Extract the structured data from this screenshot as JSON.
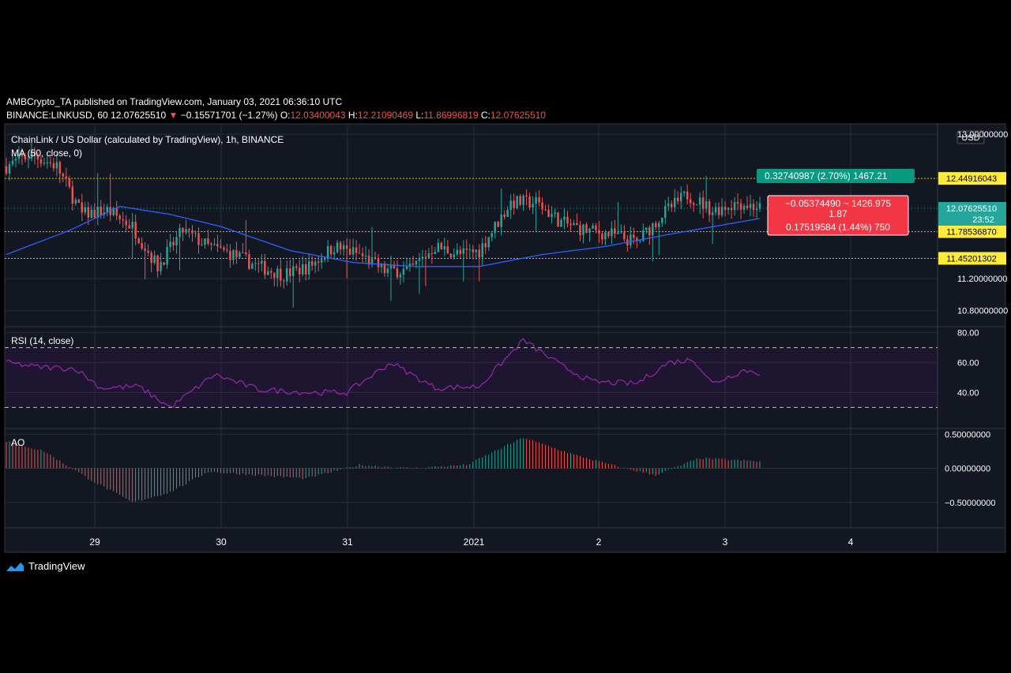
{
  "header": {
    "published": "AMBCrypto_TA published on TradingView.com, January 03, 2021 06:36:10 UTC",
    "symbol": "BINANCE:LINKUSD, 60",
    "last": "12.07625510",
    "change_arrow": "▼",
    "change": "−0.15571701 (−1.27%)",
    "o_label": "O:",
    "o_value": "12.03400043",
    "h_label": "H:",
    "h_value": "12.21090469",
    "l_label": "L:",
    "l_value": "11.86996819",
    "c_label": "C:",
    "c_value": "12.07625510"
  },
  "panes": {
    "price_title": "ChainLink / US Dollar (calculated by TradingView), 1h, BINANCE",
    "ma_label": "MA (50, close, 0)",
    "rsi_label": "RSI (14, close)",
    "ao_label": "AO",
    "currency": "USD"
  },
  "price_axis": {
    "ticks": [
      "13.00000000",
      "11.20000000",
      "10.80000000"
    ],
    "tick_values": [
      13.0,
      11.2,
      10.8
    ],
    "levels": [
      {
        "label": "12.44916043",
        "value": 12.44916043
      },
      {
        "label": "11.78536870",
        "value": 11.7853687
      },
      {
        "label": "11.45201302",
        "value": 11.45201302
      }
    ],
    "last_label": "12.07625510",
    "last_value": 12.0762551,
    "countdown": "23:52"
  },
  "rsi_axis": {
    "ticks": [
      "80.00",
      "60.00",
      "40.00"
    ],
    "tick_values": [
      80,
      60,
      40
    ],
    "band": [
      30,
      70
    ]
  },
  "ao_axis": {
    "ticks": [
      "0.50000000",
      "0.00000000",
      "−0.50000000"
    ],
    "tick_values": [
      0.5,
      0.0,
      -0.5
    ]
  },
  "time_axis": {
    "labels": [
      "29",
      "30",
      "31",
      "2021",
      "2",
      "3",
      "4"
    ]
  },
  "measure_tool": {
    "top_text": "0.32740987 (2.70%) 1467.21",
    "mid_line1": "−0.05374490 ~ 1426.975",
    "mid_line2": "1.87",
    "bottom_text": "0.17519584 (1.44%) 750"
  },
  "footer": {
    "brand": "TradingView"
  },
  "colors": {
    "up": "#26a69a",
    "down": "#ef5350",
    "ma": "#2962ff",
    "rsi": "#9c27b0",
    "level": "#e0c200",
    "grid": "#2a2e39",
    "band": "#1e1530"
  },
  "chart_data": {
    "type": "candlestick",
    "title": "ChainLink / US Dollar (calculated by TradingView), 1h, BINANCE",
    "x_labels": [
      "29",
      "30",
      "31",
      "2021",
      "2",
      "3",
      "4"
    ],
    "price_anchors": [
      {
        "t": 0,
        "p": 12.6
      },
      {
        "t": 8,
        "p": 12.75
      },
      {
        "t": 16,
        "p": 12.6
      },
      {
        "t": 24,
        "p": 12.0
      },
      {
        "t": 32,
        "p": 12.05
      },
      {
        "t": 40,
        "p": 11.85
      },
      {
        "t": 48,
        "p": 11.35
      },
      {
        "t": 56,
        "p": 11.8
      },
      {
        "t": 64,
        "p": 11.6
      },
      {
        "t": 72,
        "p": 11.5
      },
      {
        "t": 80,
        "p": 11.35
      },
      {
        "t": 88,
        "p": 11.25
      },
      {
        "t": 96,
        "p": 11.35
      },
      {
        "t": 104,
        "p": 11.6
      },
      {
        "t": 112,
        "p": 11.5
      },
      {
        "t": 120,
        "p": 11.3
      },
      {
        "t": 128,
        "p": 11.3
      },
      {
        "t": 136,
        "p": 11.6
      },
      {
        "t": 144,
        "p": 11.5
      },
      {
        "t": 150,
        "p": 11.55
      },
      {
        "t": 160,
        "p": 12.15
      },
      {
        "t": 168,
        "p": 12.15
      },
      {
        "t": 176,
        "p": 11.9
      },
      {
        "t": 184,
        "p": 11.8
      },
      {
        "t": 192,
        "p": 11.75
      },
      {
        "t": 200,
        "p": 11.65
      },
      {
        "t": 208,
        "p": 12.0
      },
      {
        "t": 216,
        "p": 12.25
      },
      {
        "t": 224,
        "p": 12.05
      },
      {
        "t": 232,
        "p": 12.15
      },
      {
        "t": 239,
        "p": 12.08
      }
    ],
    "ma_anchors": [
      {
        "t": 0,
        "p": 11.5
      },
      {
        "t": 20,
        "p": 11.8
      },
      {
        "t": 36,
        "p": 12.1
      },
      {
        "t": 52,
        "p": 12.0
      },
      {
        "t": 68,
        "p": 11.85
      },
      {
        "t": 90,
        "p": 11.55
      },
      {
        "t": 110,
        "p": 11.4
      },
      {
        "t": 130,
        "p": 11.35
      },
      {
        "t": 150,
        "p": 11.35
      },
      {
        "t": 170,
        "p": 11.5
      },
      {
        "t": 190,
        "p": 11.6
      },
      {
        "t": 210,
        "p": 11.75
      },
      {
        "t": 239,
        "p": 11.95
      }
    ],
    "rsi_anchors": [
      {
        "t": 0,
        "p": 60
      },
      {
        "t": 10,
        "p": 57
      },
      {
        "t": 22,
        "p": 56
      },
      {
        "t": 30,
        "p": 43
      },
      {
        "t": 42,
        "p": 44
      },
      {
        "t": 52,
        "p": 30
      },
      {
        "t": 66,
        "p": 52
      },
      {
        "t": 80,
        "p": 42
      },
      {
        "t": 96,
        "p": 40
      },
      {
        "t": 108,
        "p": 40
      },
      {
        "t": 122,
        "p": 60
      },
      {
        "t": 136,
        "p": 43
      },
      {
        "t": 150,
        "p": 44
      },
      {
        "t": 164,
        "p": 75
      },
      {
        "t": 176,
        "p": 58
      },
      {
        "t": 186,
        "p": 47
      },
      {
        "t": 200,
        "p": 46
      },
      {
        "t": 210,
        "p": 60
      },
      {
        "t": 218,
        "p": 62
      },
      {
        "t": 224,
        "p": 46
      },
      {
        "t": 234,
        "p": 55
      },
      {
        "t": 239,
        "p": 53
      }
    ],
    "ao_anchors": [
      {
        "t": 0,
        "p": 0.4
      },
      {
        "t": 12,
        "p": 0.25
      },
      {
        "t": 26,
        "p": -0.15
      },
      {
        "t": 40,
        "p": -0.5
      },
      {
        "t": 52,
        "p": -0.35
      },
      {
        "t": 64,
        "p": -0.05
      },
      {
        "t": 80,
        "p": -0.1
      },
      {
        "t": 95,
        "p": -0.15
      },
      {
        "t": 112,
        "p": 0.05
      },
      {
        "t": 128,
        "p": 0.0
      },
      {
        "t": 146,
        "p": 0.05
      },
      {
        "t": 164,
        "p": 0.45
      },
      {
        "t": 180,
        "p": 0.2
      },
      {
        "t": 196,
        "p": 0.0
      },
      {
        "t": 206,
        "p": -0.1
      },
      {
        "t": 220,
        "p": 0.15
      },
      {
        "t": 239,
        "p": 0.1
      }
    ],
    "candle_count": 240,
    "price_range": [
      10.62,
      13.1
    ],
    "rsi_range": [
      17,
      83
    ],
    "ao_range": [
      -0.85,
      0.55
    ],
    "grid": true,
    "series": [
      {
        "name": "ChainLink / US Dollar"
      },
      {
        "name": "MA (50, close, 0)"
      },
      {
        "name": "RSI (14, close)"
      },
      {
        "name": "AO"
      }
    ]
  }
}
